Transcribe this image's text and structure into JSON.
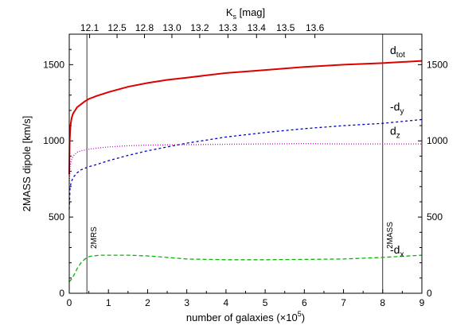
{
  "chart_data": {
    "type": "line",
    "xlabel_main": "number of galaxies (×10",
    "xlabel_sup": "5",
    "xlabel_end": ")",
    "ylabel": "2MASS dipole [km/s]",
    "top_axis_label_main": "K",
    "top_axis_label_sub": "s",
    "top_axis_label_end": " [mag]",
    "xlim": [
      0,
      9
    ],
    "ylim": [
      0,
      1700
    ],
    "x_ticks": [
      "0",
      "1",
      "2",
      "3",
      "4",
      "5",
      "6",
      "7",
      "8",
      "9"
    ],
    "y_ticks": [
      "0",
      "500",
      "1000",
      "1500"
    ],
    "top_ticks": [
      {
        "label": "12.1",
        "x": 0.52
      },
      {
        "label": "12.5",
        "x": 1.22
      },
      {
        "label": "12.8",
        "x": 1.92
      },
      {
        "label": "13.0",
        "x": 2.62
      },
      {
        "label": "13.2",
        "x": 3.33
      },
      {
        "label": "13.3",
        "x": 4.05
      },
      {
        "label": "13.4",
        "x": 4.78
      },
      {
        "label": "13.5",
        "x": 5.52
      },
      {
        "label": "13.6",
        "x": 6.27
      }
    ],
    "vlines": [
      {
        "label": "2MRS",
        "x": 0.45
      },
      {
        "label": "2MASS",
        "x": 8.0
      }
    ],
    "series": [
      {
        "name": "d",
        "sub": "tot",
        "prefix": "",
        "color": "#dd0000",
        "dash": "",
        "x": [
          0,
          0.01,
          0.03,
          0.06,
          0.1,
          0.15,
          0.2,
          0.3,
          0.4,
          0.5,
          0.7,
          1.0,
          1.5,
          2.0,
          2.5,
          3.0,
          4.0,
          5.0,
          6.0,
          7.0,
          8.0,
          9.0
        ],
        "y": [
          780,
          1000,
          1100,
          1150,
          1180,
          1200,
          1220,
          1240,
          1260,
          1275,
          1295,
          1320,
          1355,
          1380,
          1400,
          1415,
          1445,
          1465,
          1485,
          1500,
          1510,
          1525
        ]
      },
      {
        "name": "d",
        "sub": "y",
        "prefix": "-",
        "color": "#0000cc",
        "dash": "3,3",
        "x": [
          0,
          0.02,
          0.05,
          0.1,
          0.2,
          0.3,
          0.5,
          0.7,
          1.0,
          1.5,
          2.0,
          2.5,
          3.0,
          3.5,
          4.0,
          5.0,
          6.0,
          7.0,
          8.0,
          9.0
        ],
        "y": [
          550,
          690,
          730,
          760,
          790,
          810,
          830,
          845,
          870,
          905,
          935,
          960,
          985,
          1005,
          1025,
          1055,
          1080,
          1100,
          1115,
          1140
        ]
      },
      {
        "name": "d",
        "sub": "z",
        "prefix": "",
        "color": "#cc00cc",
        "dash": "1,2",
        "x": [
          0,
          0.02,
          0.05,
          0.1,
          0.2,
          0.3,
          0.5,
          0.7,
          1.0,
          1.5,
          2.0,
          3.0,
          4.0,
          5.0,
          6.0,
          7.0,
          8.0,
          9.0
        ],
        "y": [
          720,
          830,
          870,
          900,
          925,
          935,
          945,
          952,
          960,
          968,
          972,
          975,
          978,
          980,
          982,
          980,
          980,
          980
        ]
      },
      {
        "name": "d",
        "sub": "x",
        "prefix": "-",
        "color": "#00bb00",
        "dash": "5,3",
        "x": [
          0,
          0.05,
          0.1,
          0.2,
          0.3,
          0.4,
          0.5,
          0.6,
          0.8,
          1.0,
          1.5,
          2.0,
          2.5,
          3.0,
          4.0,
          5.0,
          6.0,
          7.0,
          8.0,
          9.0
        ],
        "y": [
          75,
          90,
          110,
          160,
          200,
          225,
          240,
          245,
          250,
          250,
          250,
          245,
          235,
          225,
          220,
          220,
          222,
          225,
          235,
          250
        ]
      }
    ],
    "legend_label_y": [
      1570,
      1200,
      1040,
      260
    ]
  }
}
